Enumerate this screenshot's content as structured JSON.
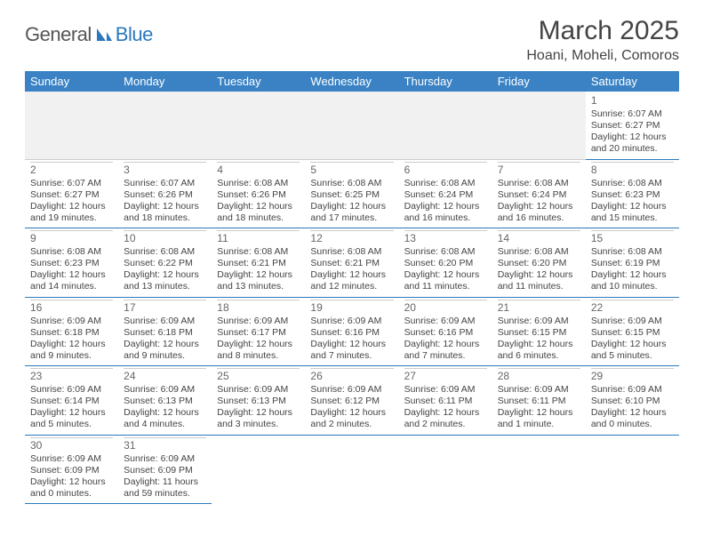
{
  "logo": {
    "part1": "General",
    "part2": "Blue"
  },
  "title": "March 2025",
  "location": "Hoani, Moheli, Comoros",
  "colors": {
    "header_bg": "#3a82c4",
    "header_fg": "#ffffff",
    "rule": "#2b78bd",
    "logo_accent": "#2b78bd",
    "text": "#444444"
  },
  "weekdays": [
    "Sunday",
    "Monday",
    "Tuesday",
    "Wednesday",
    "Thursday",
    "Friday",
    "Saturday"
  ],
  "days": {
    "1": {
      "sunrise": "6:07 AM",
      "sunset": "6:27 PM",
      "daylight": "12 hours and 20 minutes."
    },
    "2": {
      "sunrise": "6:07 AM",
      "sunset": "6:27 PM",
      "daylight": "12 hours and 19 minutes."
    },
    "3": {
      "sunrise": "6:07 AM",
      "sunset": "6:26 PM",
      "daylight": "12 hours and 18 minutes."
    },
    "4": {
      "sunrise": "6:08 AM",
      "sunset": "6:26 PM",
      "daylight": "12 hours and 18 minutes."
    },
    "5": {
      "sunrise": "6:08 AM",
      "sunset": "6:25 PM",
      "daylight": "12 hours and 17 minutes."
    },
    "6": {
      "sunrise": "6:08 AM",
      "sunset": "6:24 PM",
      "daylight": "12 hours and 16 minutes."
    },
    "7": {
      "sunrise": "6:08 AM",
      "sunset": "6:24 PM",
      "daylight": "12 hours and 16 minutes."
    },
    "8": {
      "sunrise": "6:08 AM",
      "sunset": "6:23 PM",
      "daylight": "12 hours and 15 minutes."
    },
    "9": {
      "sunrise": "6:08 AM",
      "sunset": "6:23 PM",
      "daylight": "12 hours and 14 minutes."
    },
    "10": {
      "sunrise": "6:08 AM",
      "sunset": "6:22 PM",
      "daylight": "12 hours and 13 minutes."
    },
    "11": {
      "sunrise": "6:08 AM",
      "sunset": "6:21 PM",
      "daylight": "12 hours and 13 minutes."
    },
    "12": {
      "sunrise": "6:08 AM",
      "sunset": "6:21 PM",
      "daylight": "12 hours and 12 minutes."
    },
    "13": {
      "sunrise": "6:08 AM",
      "sunset": "6:20 PM",
      "daylight": "12 hours and 11 minutes."
    },
    "14": {
      "sunrise": "6:08 AM",
      "sunset": "6:20 PM",
      "daylight": "12 hours and 11 minutes."
    },
    "15": {
      "sunrise": "6:08 AM",
      "sunset": "6:19 PM",
      "daylight": "12 hours and 10 minutes."
    },
    "16": {
      "sunrise": "6:09 AM",
      "sunset": "6:18 PM",
      "daylight": "12 hours and 9 minutes."
    },
    "17": {
      "sunrise": "6:09 AM",
      "sunset": "6:18 PM",
      "daylight": "12 hours and 9 minutes."
    },
    "18": {
      "sunrise": "6:09 AM",
      "sunset": "6:17 PM",
      "daylight": "12 hours and 8 minutes."
    },
    "19": {
      "sunrise": "6:09 AM",
      "sunset": "6:16 PM",
      "daylight": "12 hours and 7 minutes."
    },
    "20": {
      "sunrise": "6:09 AM",
      "sunset": "6:16 PM",
      "daylight": "12 hours and 7 minutes."
    },
    "21": {
      "sunrise": "6:09 AM",
      "sunset": "6:15 PM",
      "daylight": "12 hours and 6 minutes."
    },
    "22": {
      "sunrise": "6:09 AM",
      "sunset": "6:15 PM",
      "daylight": "12 hours and 5 minutes."
    },
    "23": {
      "sunrise": "6:09 AM",
      "sunset": "6:14 PM",
      "daylight": "12 hours and 5 minutes."
    },
    "24": {
      "sunrise": "6:09 AM",
      "sunset": "6:13 PM",
      "daylight": "12 hours and 4 minutes."
    },
    "25": {
      "sunrise": "6:09 AM",
      "sunset": "6:13 PM",
      "daylight": "12 hours and 3 minutes."
    },
    "26": {
      "sunrise": "6:09 AM",
      "sunset": "6:12 PM",
      "daylight": "12 hours and 2 minutes."
    },
    "27": {
      "sunrise": "6:09 AM",
      "sunset": "6:11 PM",
      "daylight": "12 hours and 2 minutes."
    },
    "28": {
      "sunrise": "6:09 AM",
      "sunset": "6:11 PM",
      "daylight": "12 hours and 1 minute."
    },
    "29": {
      "sunrise": "6:09 AM",
      "sunset": "6:10 PM",
      "daylight": "12 hours and 0 minutes."
    },
    "30": {
      "sunrise": "6:09 AM",
      "sunset": "6:09 PM",
      "daylight": "12 hours and 0 minutes."
    },
    "31": {
      "sunrise": "6:09 AM",
      "sunset": "6:09 PM",
      "daylight": "11 hours and 59 minutes."
    }
  },
  "layout": {
    "first_weekday_index": 6,
    "num_days": 31,
    "labels": {
      "sunrise": "Sunrise: ",
      "sunset": "Sunset: ",
      "daylight": "Daylight: "
    }
  }
}
